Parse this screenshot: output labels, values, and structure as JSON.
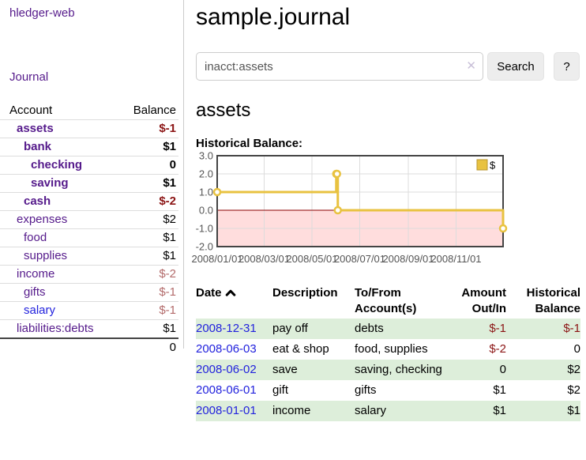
{
  "app": {
    "title": "hledger-web"
  },
  "sidebar": {
    "journal_link": "Journal",
    "table": {
      "account_header": "Account",
      "balance_header": "Balance",
      "rows": [
        {
          "name": "assets",
          "indent": 1,
          "bold": true,
          "balance": "$-1",
          "neg": "strong"
        },
        {
          "name": "bank",
          "indent": 2,
          "bold": true,
          "balance": "$1",
          "neg": "none"
        },
        {
          "name": "checking",
          "indent": 3,
          "bold": true,
          "balance": "0",
          "neg": "none"
        },
        {
          "name": "saving",
          "indent": 3,
          "bold": true,
          "balance": "$1",
          "neg": "none"
        },
        {
          "name": "cash",
          "indent": 2,
          "bold": true,
          "balance": "$-2",
          "neg": "strong"
        },
        {
          "name": "expenses",
          "indent": 1,
          "bold": false,
          "balance": "$2",
          "neg": "none"
        },
        {
          "name": "food",
          "indent": 2,
          "bold": false,
          "balance": "$1",
          "neg": "none"
        },
        {
          "name": "supplies",
          "indent": 2,
          "bold": false,
          "balance": "$1",
          "neg": "none"
        },
        {
          "name": "income",
          "indent": 1,
          "bold": false,
          "balance": "$-2",
          "neg": "muted"
        },
        {
          "name": "gifts",
          "indent": 2,
          "bold": false,
          "balance": "$-1",
          "neg": "muted"
        },
        {
          "name": "salary",
          "indent": 2,
          "bold": false,
          "balance": "$-1",
          "neg": "muted",
          "blue": true
        },
        {
          "name": "liabilities:debts",
          "indent": 1,
          "bold": false,
          "balance": "$1",
          "neg": "none"
        }
      ],
      "total": "0"
    }
  },
  "main": {
    "title": "sample.journal",
    "search": {
      "value": "inacct:assets",
      "clear_icon": "✕",
      "button_label": "Search",
      "help_label": "?"
    },
    "account_heading": "assets",
    "chart_label": "Historical Balance:"
  },
  "chart_data": {
    "type": "line",
    "title": "Historical Balance",
    "step": true,
    "series": [
      {
        "name": "$",
        "color": "#e8c240",
        "point_fill": "#ffffff",
        "points": [
          [
            "2008-01-01",
            1
          ],
          [
            "2008-06-01",
            2
          ],
          [
            "2008-06-02",
            2
          ],
          [
            "2008-06-03",
            0
          ],
          [
            "2008-12-31",
            -1
          ]
        ]
      }
    ],
    "x_range": [
      "2008-01-01",
      "2008-12-31"
    ],
    "x_ticks": [
      "2008/01/01",
      "2008/03/01",
      "2008/05/01",
      "2008/07/01",
      "2008/09/01",
      "2008/11/01"
    ],
    "y_ticks": [
      "3.0",
      "2.0",
      "1.0",
      "0.0",
      "-1.0",
      "-2.0"
    ],
    "ylim": [
      -2,
      3
    ],
    "grid": true,
    "axis_label_color": "#545454",
    "negative_region_color": "#ffdddd",
    "zero_line_color": "#8b0000",
    "border_color": "#444444",
    "legend": {
      "label": "$",
      "position": "top-right"
    }
  },
  "register": {
    "headers": {
      "date": "Date",
      "sort_icon": "chevron-up",
      "description": "Description",
      "accounts": "To/From Account(s)",
      "amount": "Amount Out/In",
      "balance": "Historical Balance"
    },
    "rows": [
      {
        "date": "2008-12-31",
        "description": "pay off",
        "accounts": "debts",
        "amount": "$-1",
        "amount_negative": true,
        "balance": "$-1",
        "balance_negative": true
      },
      {
        "date": "2008-06-03",
        "description": "eat & shop",
        "accounts": "food, supplies",
        "amount": "$-2",
        "amount_negative": true,
        "balance": "0",
        "balance_negative": false
      },
      {
        "date": "2008-06-02",
        "description": "save",
        "accounts": "saving, checking",
        "amount": "0",
        "amount_negative": false,
        "balance": "$2",
        "balance_negative": false
      },
      {
        "date": "2008-06-01",
        "description": "gift",
        "accounts": "gifts",
        "amount": "$1",
        "amount_negative": false,
        "balance": "$2",
        "balance_negative": false
      },
      {
        "date": "2008-01-01",
        "description": "income",
        "accounts": "salary",
        "amount": "$1",
        "amount_negative": false,
        "balance": "$1",
        "balance_negative": false
      }
    ]
  }
}
